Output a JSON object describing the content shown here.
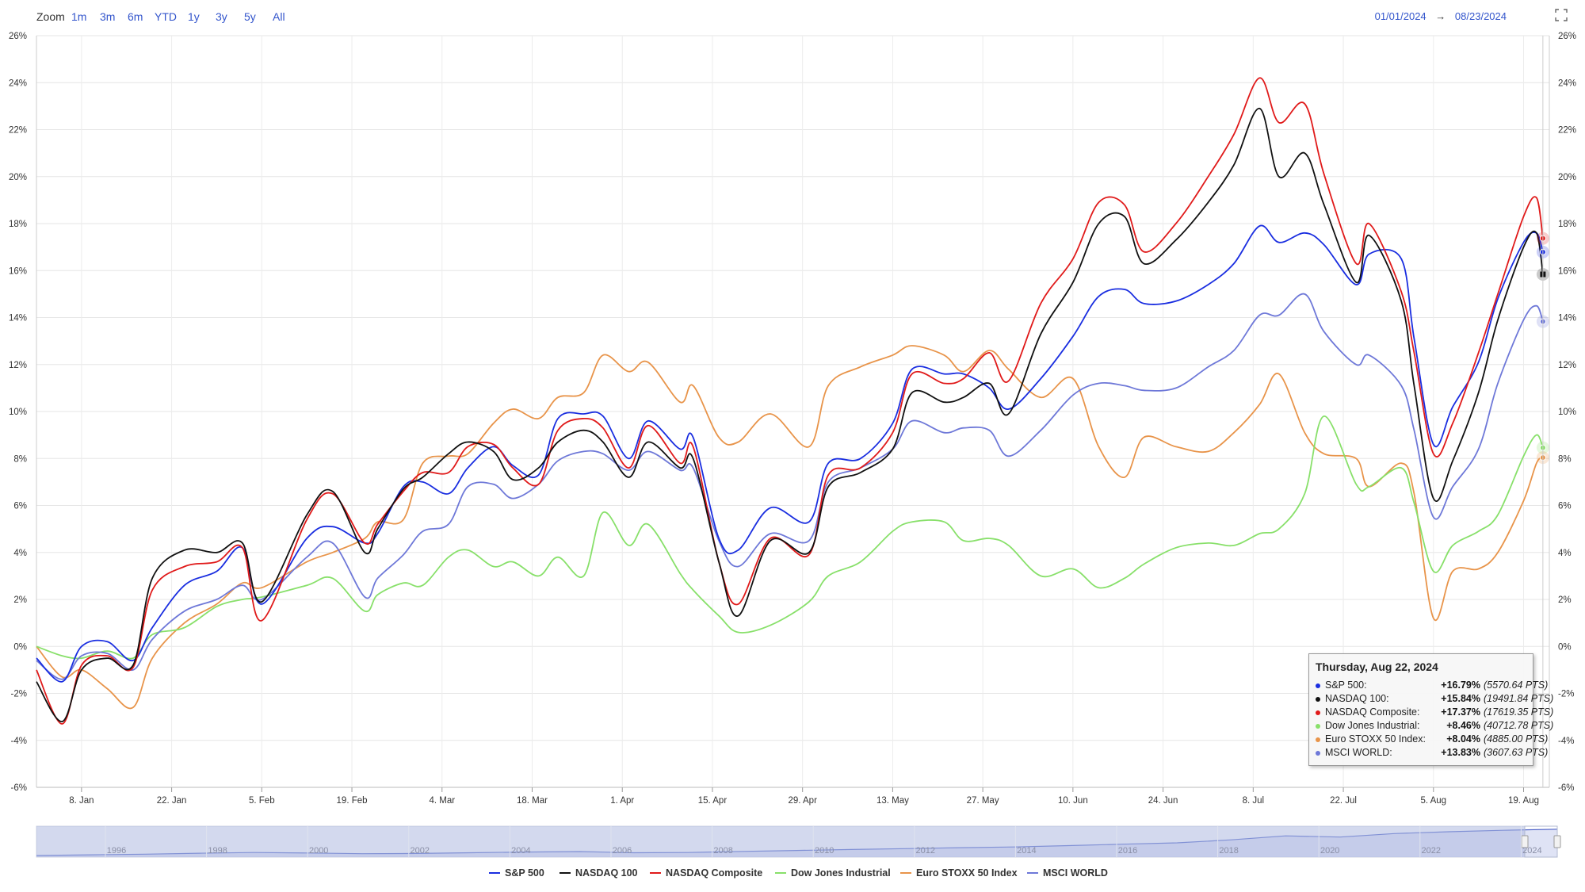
{
  "toolbar": {
    "zoom_label": "Zoom",
    "zoom_buttons": [
      "1m",
      "3m",
      "6m",
      "YTD",
      "1y",
      "3y",
      "5y",
      "All"
    ],
    "range_from": "01/01/2024",
    "range_arrow": "→",
    "range_to": "08/23/2024",
    "fullscreen_icon": "expand-icon"
  },
  "chart_data": {
    "type": "line",
    "yunit": "%",
    "ylim": [
      -6,
      26
    ],
    "ytick_labels": [
      "26%",
      "24%",
      "22%",
      "20%",
      "18%",
      "16%",
      "14%",
      "12%",
      "10%",
      "8%",
      "6%",
      "4%",
      "2%",
      "0%",
      "-2%",
      "-4%",
      "-6%"
    ],
    "xlim": [
      "2024-01-01",
      "2024-08-23"
    ],
    "xtick_labels": [
      "8. Jan",
      "22. Jan",
      "5. Feb",
      "19. Feb",
      "4. Mar",
      "18. Mar",
      "1. Apr",
      "15. Apr",
      "29. Apr",
      "13. May",
      "27. May",
      "10. Jun",
      "24. Jun",
      "8. Jul",
      "22. Jul",
      "5. Aug",
      "19. Aug"
    ],
    "grid": true,
    "legend_position": "bottom",
    "series": [
      {
        "name": "S&P 500",
        "color": "#1a2ee0",
        "x": [
          "2024-01-01",
          "2024-01-05",
          "2024-01-08",
          "2024-01-12",
          "2024-01-16",
          "2024-01-19",
          "2024-01-24",
          "2024-01-29",
          "2024-02-02",
          "2024-02-05",
          "2024-02-12",
          "2024-02-16",
          "2024-02-21",
          "2024-02-23",
          "2024-02-27",
          "2024-03-01",
          "2024-03-05",
          "2024-03-08",
          "2024-03-12",
          "2024-03-15",
          "2024-03-19",
          "2024-03-22",
          "2024-03-26",
          "2024-03-29",
          "2024-04-02",
          "2024-04-05",
          "2024-04-10",
          "2024-04-12",
          "2024-04-16",
          "2024-04-19",
          "2024-04-24",
          "2024-04-30",
          "2024-05-03",
          "2024-05-08",
          "2024-05-13",
          "2024-05-16",
          "2024-05-21",
          "2024-05-24",
          "2024-05-28",
          "2024-05-31",
          "2024-06-05",
          "2024-06-10",
          "2024-06-14",
          "2024-06-18",
          "2024-06-21",
          "2024-06-26",
          "2024-07-01",
          "2024-07-05",
          "2024-07-09",
          "2024-07-12",
          "2024-07-16",
          "2024-07-19",
          "2024-07-24",
          "2024-07-26",
          "2024-07-31",
          "2024-08-02",
          "2024-08-05",
          "2024-08-08",
          "2024-08-12",
          "2024-08-15",
          "2024-08-19",
          "2024-08-21",
          "2024-08-22"
        ],
        "values": [
          -0.5,
          -1.5,
          0,
          0.2,
          -0.6,
          0.8,
          2.6,
          3.2,
          4.2,
          1.8,
          4.6,
          5.1,
          4.4,
          4.8,
          6.8,
          7.0,
          6.5,
          7.6,
          8.5,
          7.7,
          7.3,
          9.7,
          9.9,
          9.8,
          8.0,
          9.6,
          8.4,
          8.9,
          4.6,
          4.1,
          5.9,
          5.3,
          7.8,
          8.0,
          9.5,
          11.8,
          11.6,
          11.6,
          11.0,
          10.1,
          11.4,
          13.2,
          14.9,
          15.2,
          14.6,
          14.7,
          15.4,
          16.3,
          17.9,
          17.2,
          17.6,
          17.1,
          15.4,
          16.7,
          16.5,
          13.1,
          8.6,
          10.2,
          12.1,
          14.8,
          17.2,
          17.6,
          16.79
        ],
        "tooltip_pct": "+16.79%",
        "tooltip_pts": "(5570.64 PTS)"
      },
      {
        "name": "NASDAQ 100",
        "color": "#111111",
        "x": [
          "2024-01-01",
          "2024-01-05",
          "2024-01-08",
          "2024-01-12",
          "2024-01-16",
          "2024-01-19",
          "2024-01-24",
          "2024-01-29",
          "2024-02-02",
          "2024-02-05",
          "2024-02-12",
          "2024-02-16",
          "2024-02-21",
          "2024-02-23",
          "2024-02-27",
          "2024-03-01",
          "2024-03-05",
          "2024-03-08",
          "2024-03-12",
          "2024-03-15",
          "2024-03-19",
          "2024-03-22",
          "2024-03-26",
          "2024-03-29",
          "2024-04-02",
          "2024-04-05",
          "2024-04-10",
          "2024-04-12",
          "2024-04-16",
          "2024-04-19",
          "2024-04-24",
          "2024-04-30",
          "2024-05-03",
          "2024-05-08",
          "2024-05-13",
          "2024-05-16",
          "2024-05-21",
          "2024-05-24",
          "2024-05-28",
          "2024-05-31",
          "2024-06-05",
          "2024-06-10",
          "2024-06-14",
          "2024-06-18",
          "2024-06-21",
          "2024-06-26",
          "2024-07-01",
          "2024-07-05",
          "2024-07-09",
          "2024-07-12",
          "2024-07-16",
          "2024-07-19",
          "2024-07-24",
          "2024-07-26",
          "2024-07-31",
          "2024-08-02",
          "2024-08-05",
          "2024-08-08",
          "2024-08-12",
          "2024-08-15",
          "2024-08-19",
          "2024-08-21",
          "2024-08-22"
        ],
        "values": [
          -1.5,
          -3.2,
          -1.0,
          -0.5,
          -0.8,
          2.9,
          4.1,
          4.0,
          4.4,
          1.9,
          5.6,
          6.6,
          4.0,
          5.0,
          6.7,
          7.2,
          8.2,
          8.7,
          8.3,
          7.1,
          7.6,
          8.7,
          9.2,
          8.7,
          7.2,
          8.7,
          7.6,
          8.0,
          3.6,
          1.3,
          4.5,
          4.0,
          6.8,
          7.4,
          8.4,
          10.8,
          10.4,
          10.6,
          11.2,
          9.9,
          13.3,
          15.5,
          18.0,
          18.3,
          16.3,
          17.3,
          18.9,
          20.5,
          22.9,
          20.0,
          21.0,
          18.8,
          15.5,
          17.5,
          14.7,
          11.1,
          6.3,
          7.9,
          10.8,
          13.9,
          17.0,
          17.6,
          15.84
        ],
        "tooltip_pct": "+15.84%",
        "tooltip_pts": "(19491.84 PTS)"
      },
      {
        "name": "NASDAQ Composite",
        "color": "#e01a1a",
        "x": [
          "2024-01-01",
          "2024-01-05",
          "2024-01-08",
          "2024-01-12",
          "2024-01-16",
          "2024-01-19",
          "2024-01-24",
          "2024-01-29",
          "2024-02-02",
          "2024-02-05",
          "2024-02-12",
          "2024-02-16",
          "2024-02-21",
          "2024-02-23",
          "2024-02-27",
          "2024-03-01",
          "2024-03-05",
          "2024-03-08",
          "2024-03-12",
          "2024-03-15",
          "2024-03-19",
          "2024-03-22",
          "2024-03-26",
          "2024-03-29",
          "2024-04-02",
          "2024-04-05",
          "2024-04-10",
          "2024-04-12",
          "2024-04-16",
          "2024-04-19",
          "2024-04-24",
          "2024-04-30",
          "2024-05-03",
          "2024-05-08",
          "2024-05-13",
          "2024-05-16",
          "2024-05-21",
          "2024-05-24",
          "2024-05-28",
          "2024-05-31",
          "2024-06-05",
          "2024-06-10",
          "2024-06-14",
          "2024-06-18",
          "2024-06-21",
          "2024-06-26",
          "2024-07-01",
          "2024-07-05",
          "2024-07-09",
          "2024-07-12",
          "2024-07-16",
          "2024-07-19",
          "2024-07-24",
          "2024-07-26",
          "2024-07-31",
          "2024-08-02",
          "2024-08-05",
          "2024-08-08",
          "2024-08-12",
          "2024-08-15",
          "2024-08-19",
          "2024-08-21",
          "2024-08-22"
        ],
        "values": [
          -1.0,
          -3.3,
          -0.8,
          -0.4,
          -0.9,
          2.4,
          3.4,
          3.6,
          4.2,
          1.1,
          5.4,
          6.5,
          4.4,
          5.2,
          6.6,
          7.4,
          7.4,
          8.5,
          8.6,
          7.6,
          6.9,
          9.2,
          9.7,
          9.3,
          7.6,
          9.4,
          7.8,
          8.5,
          3.6,
          1.8,
          4.6,
          3.9,
          7.3,
          7.6,
          9.1,
          11.6,
          11.2,
          11.4,
          12.5,
          11.3,
          14.6,
          16.5,
          18.9,
          18.8,
          16.8,
          18.0,
          20.0,
          21.8,
          24.2,
          22.3,
          23.1,
          20.1,
          16.3,
          18.0,
          15.1,
          12.5,
          8.2,
          9.5,
          12.5,
          15.0,
          18.3,
          19.1,
          17.37
        ],
        "tooltip_pct": "+17.37%",
        "tooltip_pts": "(17619.35 PTS)"
      },
      {
        "name": "Dow Jones Industrial",
        "color": "#88e06a",
        "x": [
          "2024-01-01",
          "2024-01-05",
          "2024-01-08",
          "2024-01-12",
          "2024-01-16",
          "2024-01-19",
          "2024-01-24",
          "2024-01-29",
          "2024-02-02",
          "2024-02-05",
          "2024-02-12",
          "2024-02-16",
          "2024-02-21",
          "2024-02-23",
          "2024-02-27",
          "2024-03-01",
          "2024-03-05",
          "2024-03-08",
          "2024-03-12",
          "2024-03-15",
          "2024-03-19",
          "2024-03-22",
          "2024-03-26",
          "2024-03-29",
          "2024-04-02",
          "2024-04-05",
          "2024-04-10",
          "2024-04-12",
          "2024-04-16",
          "2024-04-19",
          "2024-04-24",
          "2024-04-30",
          "2024-05-03",
          "2024-05-08",
          "2024-05-13",
          "2024-05-16",
          "2024-05-21",
          "2024-05-24",
          "2024-05-28",
          "2024-05-31",
          "2024-06-05",
          "2024-06-10",
          "2024-06-14",
          "2024-06-18",
          "2024-06-21",
          "2024-06-26",
          "2024-07-01",
          "2024-07-05",
          "2024-07-09",
          "2024-07-12",
          "2024-07-16",
          "2024-07-19",
          "2024-07-24",
          "2024-07-26",
          "2024-07-31",
          "2024-08-02",
          "2024-08-05",
          "2024-08-08",
          "2024-08-12",
          "2024-08-15",
          "2024-08-19",
          "2024-08-21",
          "2024-08-22"
        ],
        "values": [
          0,
          -0.4,
          -0.5,
          -0.2,
          -0.5,
          0.5,
          0.8,
          1.7,
          2.0,
          2.1,
          2.6,
          2.9,
          1.5,
          2.2,
          2.7,
          2.6,
          3.8,
          4.1,
          3.4,
          3.6,
          3.0,
          3.8,
          3.0,
          5.7,
          4.3,
          5.2,
          3.1,
          2.4,
          1.3,
          0.6,
          0.9,
          1.9,
          3.0,
          3.6,
          4.9,
          5.3,
          5.3,
          4.5,
          4.6,
          4.3,
          3.0,
          3.3,
          2.5,
          2.9,
          3.5,
          4.2,
          4.4,
          4.3,
          4.8,
          5.0,
          6.5,
          9.8,
          6.9,
          6.8,
          7.6,
          6.1,
          3.2,
          4.3,
          4.9,
          5.6,
          8.1,
          9.0,
          8.46
        ],
        "tooltip_pct": "+8.46%",
        "tooltip_pts": "(40712.78 PTS)"
      },
      {
        "name": "Euro STOXX 50 Index",
        "color": "#e8944a",
        "x": [
          "2024-01-01",
          "2024-01-05",
          "2024-01-08",
          "2024-01-12",
          "2024-01-16",
          "2024-01-19",
          "2024-01-24",
          "2024-01-29",
          "2024-02-02",
          "2024-02-05",
          "2024-02-12",
          "2024-02-16",
          "2024-02-21",
          "2024-02-23",
          "2024-02-27",
          "2024-03-01",
          "2024-03-05",
          "2024-03-08",
          "2024-03-12",
          "2024-03-15",
          "2024-03-19",
          "2024-03-22",
          "2024-03-26",
          "2024-03-29",
          "2024-04-02",
          "2024-04-05",
          "2024-04-10",
          "2024-04-12",
          "2024-04-16",
          "2024-04-19",
          "2024-04-24",
          "2024-04-30",
          "2024-05-03",
          "2024-05-08",
          "2024-05-13",
          "2024-05-16",
          "2024-05-21",
          "2024-05-24",
          "2024-05-28",
          "2024-05-31",
          "2024-06-05",
          "2024-06-10",
          "2024-06-14",
          "2024-06-18",
          "2024-06-21",
          "2024-06-26",
          "2024-07-01",
          "2024-07-05",
          "2024-07-09",
          "2024-07-12",
          "2024-07-16",
          "2024-07-19",
          "2024-07-24",
          "2024-07-26",
          "2024-07-31",
          "2024-08-02",
          "2024-08-05",
          "2024-08-08",
          "2024-08-12",
          "2024-08-15",
          "2024-08-19",
          "2024-08-21",
          "2024-08-22"
        ],
        "values": [
          0,
          -1.3,
          -1.0,
          -1.8,
          -2.6,
          -0.5,
          1.0,
          1.8,
          2.7,
          2.5,
          3.6,
          4.0,
          4.6,
          5.3,
          5.4,
          7.8,
          8.1,
          8.2,
          9.5,
          10.1,
          9.7,
          10.6,
          10.8,
          12.4,
          11.7,
          12.1,
          10.4,
          11.1,
          8.9,
          8.7,
          9.9,
          8.5,
          11.1,
          11.9,
          12.4,
          12.8,
          12.4,
          11.7,
          12.6,
          11.8,
          10.6,
          11.4,
          8.5,
          7.2,
          8.9,
          8.5,
          8.3,
          9.1,
          10.3,
          11.6,
          9.1,
          8.2,
          8.0,
          6.8,
          7.8,
          6.5,
          1.2,
          3.2,
          3.3,
          4.0,
          6.2,
          7.8,
          8.04
        ],
        "tooltip_pct": "+8.04%",
        "tooltip_pts": "(4885.00 PTS)"
      },
      {
        "name": "MSCI WORLD",
        "color": "#6e78d8",
        "x": [
          "2024-01-01",
          "2024-01-05",
          "2024-01-08",
          "2024-01-12",
          "2024-01-16",
          "2024-01-19",
          "2024-01-24",
          "2024-01-29",
          "2024-02-02",
          "2024-02-05",
          "2024-02-12",
          "2024-02-16",
          "2024-02-21",
          "2024-02-23",
          "2024-02-27",
          "2024-03-01",
          "2024-03-05",
          "2024-03-08",
          "2024-03-12",
          "2024-03-15",
          "2024-03-19",
          "2024-03-22",
          "2024-03-26",
          "2024-03-29",
          "2024-04-02",
          "2024-04-05",
          "2024-04-10",
          "2024-04-12",
          "2024-04-16",
          "2024-04-19",
          "2024-04-24",
          "2024-04-30",
          "2024-05-03",
          "2024-05-08",
          "2024-05-13",
          "2024-05-16",
          "2024-05-21",
          "2024-05-24",
          "2024-05-28",
          "2024-05-31",
          "2024-06-05",
          "2024-06-10",
          "2024-06-14",
          "2024-06-18",
          "2024-06-21",
          "2024-06-26",
          "2024-07-01",
          "2024-07-05",
          "2024-07-09",
          "2024-07-12",
          "2024-07-16",
          "2024-07-19",
          "2024-07-24",
          "2024-07-26",
          "2024-07-31",
          "2024-08-02",
          "2024-08-05",
          "2024-08-08",
          "2024-08-12",
          "2024-08-15",
          "2024-08-19",
          "2024-08-21",
          "2024-08-22"
        ],
        "values": [
          -0.6,
          -1.4,
          -0.4,
          -0.3,
          -1.0,
          0.3,
          1.5,
          2.0,
          2.6,
          2.0,
          3.8,
          4.4,
          2.1,
          2.9,
          3.9,
          4.9,
          5.2,
          6.8,
          6.9,
          6.3,
          6.9,
          7.9,
          8.3,
          8.2,
          7.5,
          8.3,
          7.5,
          7.6,
          4.5,
          3.4,
          4.8,
          4.5,
          7.0,
          7.6,
          8.4,
          9.6,
          9.1,
          9.3,
          9.2,
          8.1,
          9.2,
          10.7,
          11.2,
          11.1,
          10.9,
          11.0,
          11.9,
          12.6,
          14.1,
          14.1,
          15.0,
          13.4,
          12.0,
          12.4,
          11.1,
          9.2,
          5.5,
          6.8,
          8.4,
          11.2,
          13.9,
          14.5,
          13.83
        ],
        "tooltip_pct": "+13.83%",
        "tooltip_pts": "(3607.63 PTS)"
      }
    ]
  },
  "tooltip": {
    "title": "Thursday, Aug 22, 2024",
    "rows": [
      {
        "label": "S&P 500:"
      },
      {
        "label": "NASDAQ 100:"
      },
      {
        "label": "NASDAQ Composite:"
      },
      {
        "label": "Dow Jones Industrial:"
      },
      {
        "label": "Euro STOXX 50 Index:"
      },
      {
        "label": "MSCI WORLD:"
      }
    ]
  },
  "navigator": {
    "year_labels": [
      "1996",
      "1998",
      "2000",
      "2002",
      "2004",
      "2006",
      "2008",
      "2010",
      "2012",
      "2014",
      "2016",
      "2018",
      "2020",
      "2022",
      "2024"
    ],
    "history_values": [
      0,
      0.3,
      0.6,
      1.0,
      1.3,
      1.1,
      0.8,
      0.9,
      1.2,
      1.5,
      1.7,
      1.2,
      1.3,
      1.8,
      2.2,
      2.6,
      3.0,
      3.4,
      3.7,
      4.3,
      4.9,
      5.5,
      6.8,
      8.5,
      8.0,
      9.5,
      10.3,
      10.9,
      11.4
    ]
  }
}
